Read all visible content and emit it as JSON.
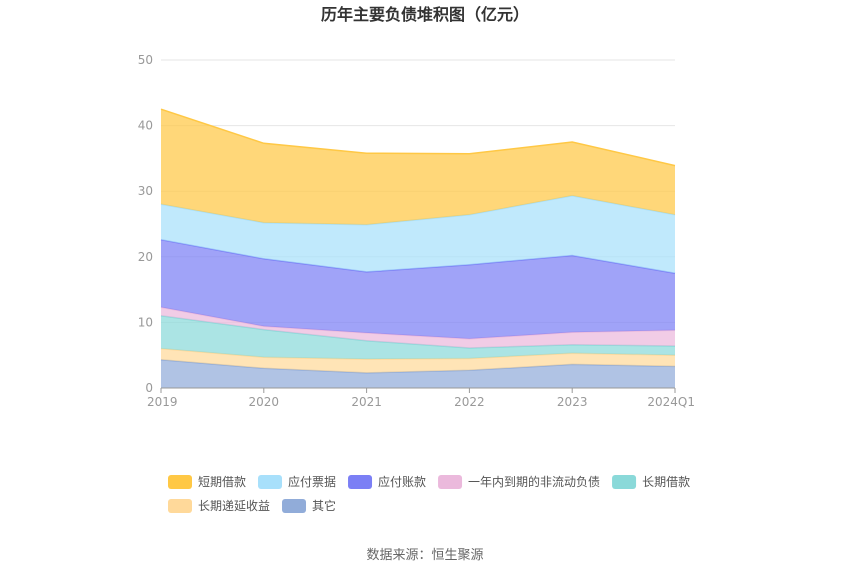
{
  "chart_data": {
    "type": "area",
    "stacked": true,
    "title": "历年主要负债堆积图（亿元）",
    "x": [
      "2019",
      "2020",
      "2021",
      "2022",
      "2023",
      "2024Q1"
    ],
    "ylim": [
      0,
      50
    ],
    "yticks": [
      "0",
      "10",
      "20",
      "30",
      "40",
      "50"
    ],
    "grid": true,
    "legend_position": "bottom",
    "series": [
      {
        "name": "其它",
        "color": "#91acd9",
        "values": [
          4.3,
          3.0,
          2.3,
          2.7,
          3.6,
          3.3
        ]
      },
      {
        "name": "长期递延收益",
        "color": "#ffd99a",
        "values": [
          1.7,
          1.7,
          2.1,
          1.8,
          1.7,
          1.7
        ]
      },
      {
        "name": "长期借款",
        "color": "#8ad9d9",
        "values": [
          5.0,
          4.2,
          2.8,
          1.6,
          1.3,
          1.4
        ]
      },
      {
        "name": "一年内到期的非流动负债",
        "color": "#ebb9dc",
        "values": [
          1.3,
          0.5,
          1.2,
          1.4,
          1.9,
          2.4
        ]
      },
      {
        "name": "应付账款",
        "color": "#7b7ff5",
        "values": [
          10.3,
          10.3,
          9.3,
          11.3,
          11.7,
          8.7
        ]
      },
      {
        "name": "应付票据",
        "color": "#a8e0fb",
        "values": [
          5.4,
          5.5,
          7.2,
          7.6,
          9.1,
          8.9
        ]
      },
      {
        "name": "短期借款",
        "color": "#ffc845",
        "values": [
          14.5,
          12.1,
          10.9,
          9.3,
          8.2,
          7.5
        ]
      }
    ],
    "legend_order": [
      "短期借款",
      "应付票据",
      "应付账款",
      "一年内到期的非流动负债",
      "长期借款",
      "长期递延收益",
      "其它"
    ]
  },
  "source_text": "数据来源：恒生聚源"
}
